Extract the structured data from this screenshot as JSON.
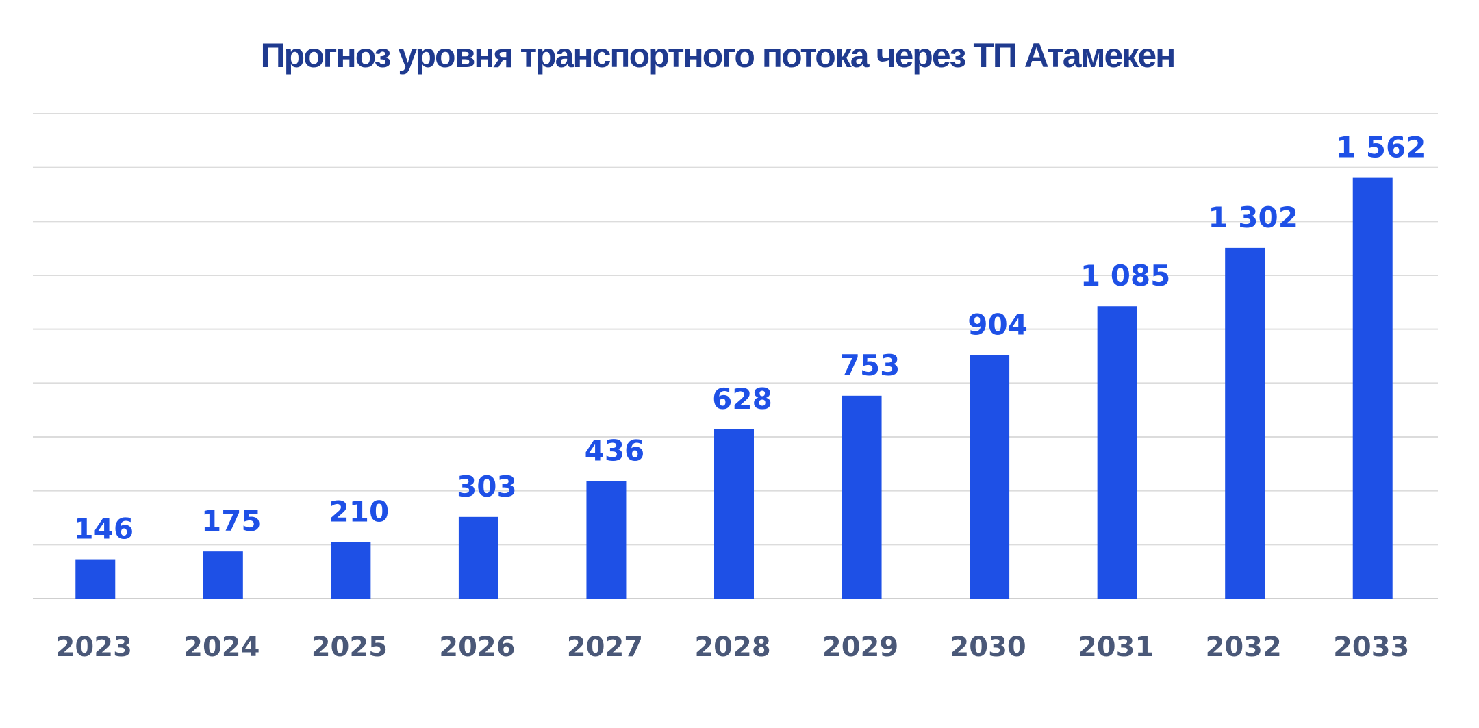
{
  "chart_data": {
    "type": "bar",
    "title": "Прогноз уровня транспортного потока через ТП Атамекен",
    "categories": [
      "2023",
      "2024",
      "2025",
      "2026",
      "2027",
      "2028",
      "2029",
      "2030",
      "2031",
      "2032",
      "2033"
    ],
    "values": [
      146,
      175,
      210,
      303,
      436,
      628,
      753,
      904,
      1085,
      1302,
      1562
    ],
    "value_labels": [
      "146",
      "175",
      "210",
      "303",
      "436",
      "628",
      "753",
      "904",
      "1 085",
      "1 302",
      "1 562"
    ],
    "xlabel": "",
    "ylabel": "",
    "ylim": [
      0,
      1800
    ],
    "grid": true,
    "legend": "none",
    "colors": {
      "bar": "#1e50e6",
      "data_label": "#1e50e6",
      "title": "#1f3a8f",
      "tick_label": "#4a5878",
      "grid": "#dcdcdc"
    }
  }
}
